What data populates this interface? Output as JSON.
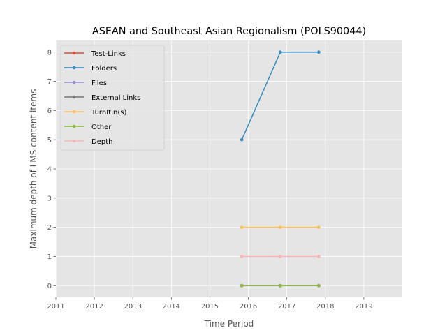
{
  "chart_data": {
    "type": "line",
    "title": "ASEAN and Southeast Asian Regionalism (POLS90044)",
    "xlabel": "Time Period",
    "ylabel": "Maximum depth of LMS content items",
    "xlim": [
      2011,
      2020
    ],
    "ylim": [
      -0.4,
      8.4
    ],
    "xticks": [
      2011,
      2012,
      2013,
      2014,
      2015,
      2016,
      2017,
      2018,
      2019
    ],
    "yticks": [
      0,
      1,
      2,
      3,
      4,
      5,
      6,
      7,
      8
    ],
    "grid": true,
    "legend_position": "top-left",
    "x": [
      2015.83,
      2016.83,
      2017.83
    ],
    "series": [
      {
        "name": "Test-Links",
        "color": "#E24A33",
        "values": [
          0,
          0,
          0
        ]
      },
      {
        "name": "Folders",
        "color": "#348ABD",
        "values": [
          5,
          8,
          8
        ]
      },
      {
        "name": "Files",
        "color": "#988ED5",
        "values": [
          0,
          0,
          0
        ]
      },
      {
        "name": "External Links",
        "color": "#777777",
        "values": [
          0,
          0,
          0
        ]
      },
      {
        "name": "TurnItIn(s)",
        "color": "#FBC15E",
        "values": [
          2,
          2,
          2
        ]
      },
      {
        "name": "Other",
        "color": "#8EBA42",
        "values": [
          0,
          0,
          0
        ]
      },
      {
        "name": "Depth",
        "color": "#FFB5B8",
        "values": [
          1,
          1,
          1
        ]
      }
    ]
  }
}
